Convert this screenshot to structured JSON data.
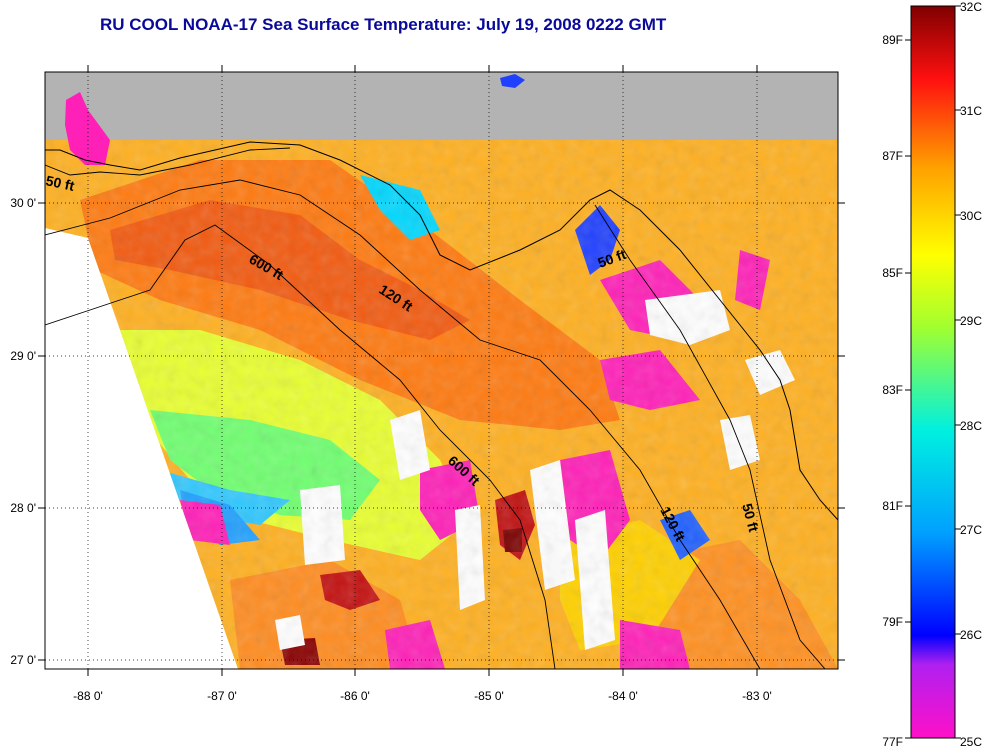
{
  "title": "RU COOL  NOAA-17  Sea Surface Temperature:  July 19, 2008 0222 GMT",
  "map": {
    "lat_ticks": [
      "30 0'",
      "29 0'",
      "28 0'",
      "27 0'"
    ],
    "lon_ticks": [
      "-88 0'",
      "-87 0'",
      "-86 0'",
      "-85 0'",
      "-84 0'",
      "-83 0'"
    ],
    "contour_labels": [
      "50 ft",
      "600 ft",
      "120 ft",
      "50 ft",
      "600 ft",
      "120 ft",
      "50 ft"
    ],
    "colors": {
      "land": "#b3b3b3",
      "ocean_warm": "#ff7a10",
      "ocean_cool": "#2040ff",
      "cloud": "#ffffff"
    }
  },
  "colorbar": {
    "fahrenheit_labels": [
      "89F",
      "87F",
      "85F",
      "83F",
      "81F",
      "79F",
      "77F"
    ],
    "celsius_labels": [
      "32C",
      "31C",
      "30C",
      "29C",
      "28C",
      "27C",
      "26C",
      "25C"
    ],
    "range_c": [
      25,
      32
    ]
  }
}
